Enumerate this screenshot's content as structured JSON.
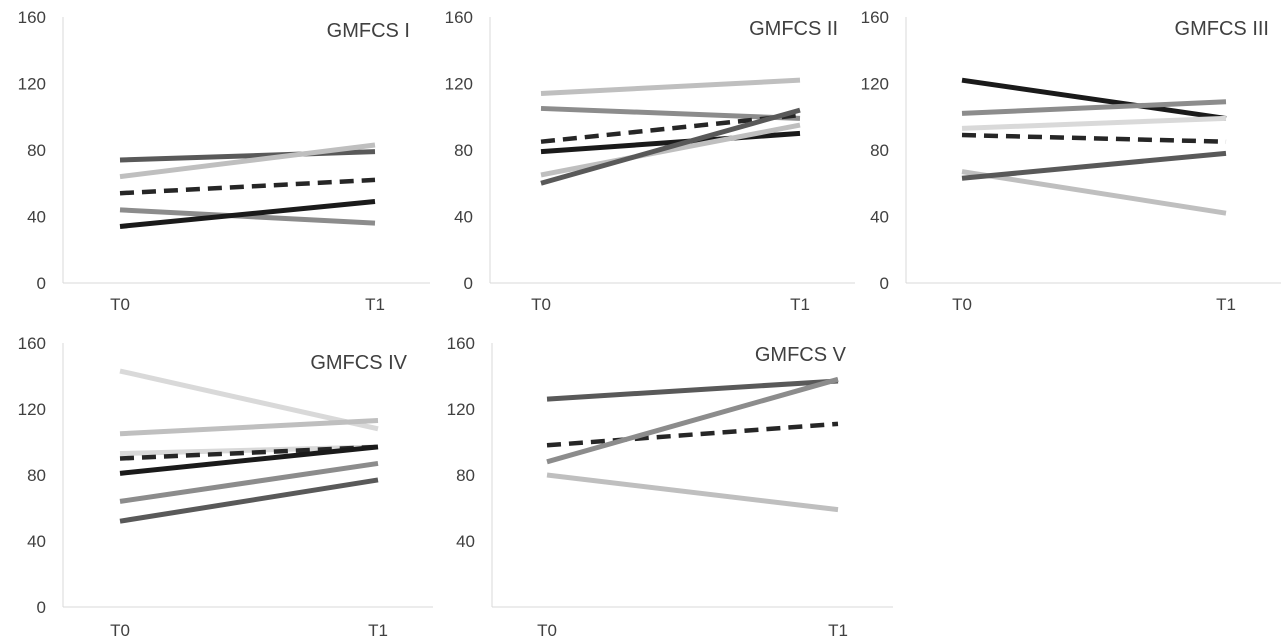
{
  "chart_data": [
    {
      "type": "line",
      "title": "GMFCS I",
      "categories": [
        "T0",
        "T1"
      ],
      "y_ticks": [
        "0",
        "40",
        "80",
        "120",
        "160"
      ],
      "ylim": [
        0,
        160
      ],
      "grid": false,
      "series": [
        {
          "values": [
            74,
            79
          ],
          "color": "#595959",
          "dashed": false
        },
        {
          "values": [
            64,
            83
          ],
          "color": "#bfbfbf",
          "dashed": false
        },
        {
          "values": [
            54,
            62
          ],
          "color": "#262626",
          "dashed": true
        },
        {
          "values": [
            44,
            36
          ],
          "color": "#8c8c8c",
          "dashed": false
        },
        {
          "values": [
            34,
            49
          ],
          "color": "#1a1a1a",
          "dashed": false
        }
      ]
    },
    {
      "type": "line",
      "title": "GMFCS II",
      "categories": [
        "T0",
        "T1"
      ],
      "y_ticks": [
        "0",
        "40",
        "80",
        "120",
        "160"
      ],
      "ylim": [
        0,
        160
      ],
      "grid": false,
      "series": [
        {
          "values": [
            114,
            122
          ],
          "color": "#bfbfbf",
          "dashed": false
        },
        {
          "values": [
            105,
            99
          ],
          "color": "#8c8c8c",
          "dashed": false
        },
        {
          "values": [
            85,
            101
          ],
          "color": "#262626",
          "dashed": true
        },
        {
          "values": [
            79,
            90
          ],
          "color": "#1a1a1a",
          "dashed": false
        },
        {
          "values": [
            65,
            95
          ],
          "color": "#bfbfbf",
          "dashed": false
        },
        {
          "values": [
            60,
            104
          ],
          "color": "#595959",
          "dashed": false
        }
      ]
    },
    {
      "type": "line",
      "title": "GMFCS III",
      "categories": [
        "T0",
        "T1"
      ],
      "y_ticks": [
        "0",
        "40",
        "80",
        "120",
        "160"
      ],
      "ylim": [
        0,
        160
      ],
      "grid": false,
      "series": [
        {
          "values": [
            122,
            99
          ],
          "color": "#1a1a1a",
          "dashed": false
        },
        {
          "values": [
            102,
            109
          ],
          "color": "#8c8c8c",
          "dashed": false
        },
        {
          "values": [
            93,
            99
          ],
          "color": "#d9d9d9",
          "dashed": false
        },
        {
          "values": [
            89,
            85
          ],
          "color": "#262626",
          "dashed": true
        },
        {
          "values": [
            67,
            42
          ],
          "color": "#bfbfbf",
          "dashed": false
        },
        {
          "values": [
            63,
            78
          ],
          "color": "#595959",
          "dashed": false
        }
      ]
    },
    {
      "type": "line",
      "title": "GMFCS IV",
      "categories": [
        "T0",
        "T1"
      ],
      "y_ticks": [
        "0",
        "40",
        "80",
        "120",
        "160"
      ],
      "ylim": [
        0,
        160
      ],
      "grid": false,
      "series": [
        {
          "values": [
            143,
            108
          ],
          "color": "#d9d9d9",
          "dashed": false
        },
        {
          "values": [
            105,
            113
          ],
          "color": "#bfbfbf",
          "dashed": false
        },
        {
          "values": [
            93,
            97
          ],
          "color": "#d9d9d9",
          "dashed": false
        },
        {
          "values": [
            90,
            97
          ],
          "color": "#262626",
          "dashed": true
        },
        {
          "values": [
            81,
            97
          ],
          "color": "#1a1a1a",
          "dashed": false
        },
        {
          "values": [
            64,
            87
          ],
          "color": "#8c8c8c",
          "dashed": false
        },
        {
          "values": [
            52,
            77
          ],
          "color": "#595959",
          "dashed": false
        }
      ]
    },
    {
      "type": "line",
      "title": "GMFCS V",
      "categories": [
        "T0",
        "T1"
      ],
      "y_ticks": [
        "",
        "40",
        "80",
        "120",
        "160"
      ],
      "ylim": [
        0,
        160
      ],
      "grid": false,
      "series": [
        {
          "values": [
            126,
            137
          ],
          "color": "#595959",
          "dashed": false
        },
        {
          "values": [
            98,
            111
          ],
          "color": "#262626",
          "dashed": true
        },
        {
          "values": [
            88,
            138
          ],
          "color": "#8c8c8c",
          "dashed": false
        },
        {
          "values": [
            80,
            59
          ],
          "color": "#bfbfbf",
          "dashed": false
        }
      ]
    }
  ]
}
